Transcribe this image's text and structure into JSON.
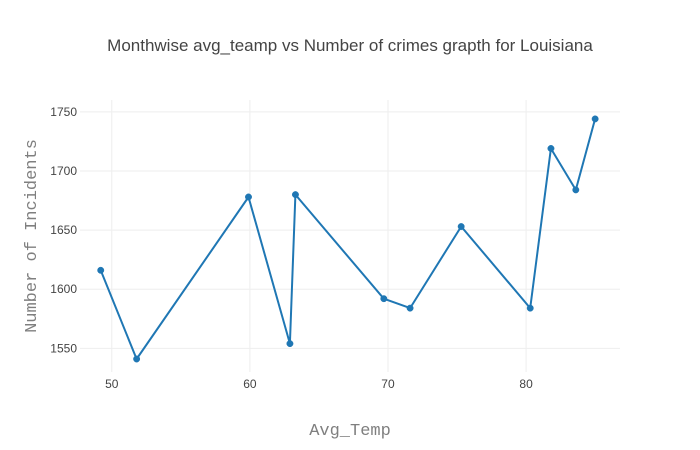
{
  "chart_data": {
    "type": "line",
    "title": "Monthwise avg_teamp vs Number of crimes grapth for Louisiana",
    "xlabel": "Avg_Temp",
    "ylabel": "Number of Incidents",
    "xlim": [
      47.7,
      86.8
    ],
    "ylim": [
      1530,
      1760
    ],
    "xticks": [
      50,
      60,
      70,
      80
    ],
    "yticks": [
      1550,
      1600,
      1650,
      1700,
      1750
    ],
    "grid": true,
    "series": [
      {
        "x": [
          49.2,
          51.8,
          59.9,
          62.9,
          63.3,
          69.7,
          71.6,
          75.3,
          80.3,
          81.8,
          83.6,
          85.0
        ],
        "values": [
          1616,
          1541,
          1678,
          1554,
          1680,
          1592,
          1584,
          1653,
          1584,
          1719,
          1684,
          1744
        ],
        "color": "#1f77b4"
      }
    ]
  }
}
